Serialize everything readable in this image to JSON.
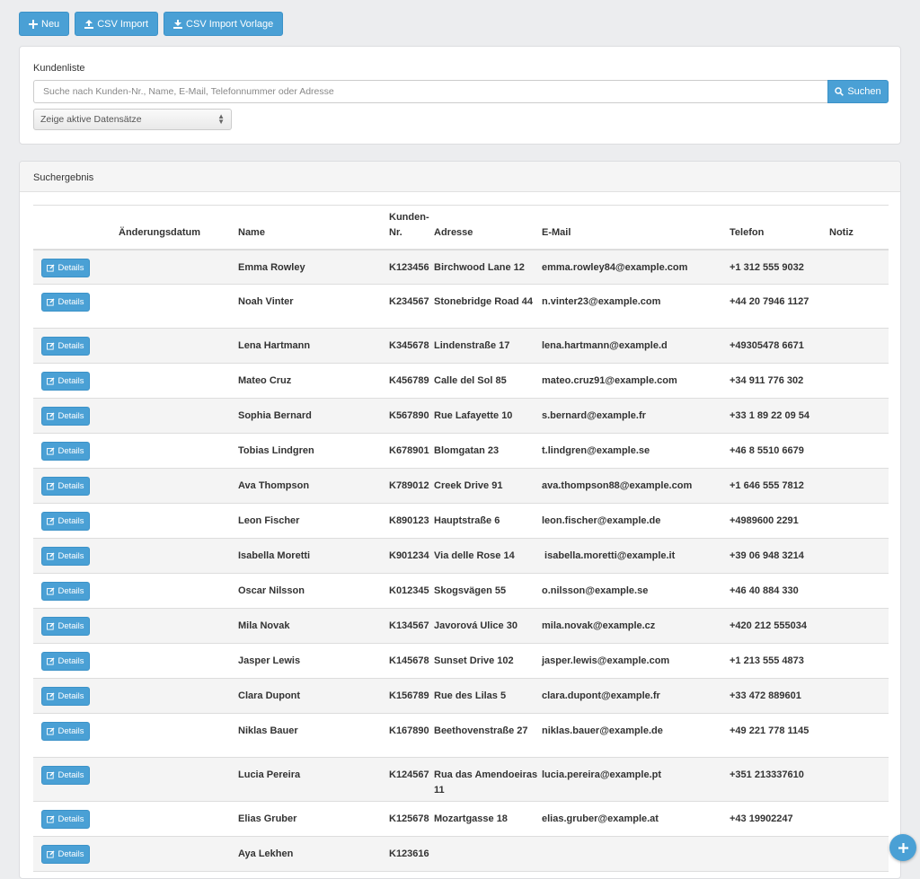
{
  "toolbar": {
    "new_label": "Neu",
    "csv_import_label": "CSV Import",
    "csv_template_label": "CSV Import Vorlage"
  },
  "search": {
    "title": "Kundenliste",
    "placeholder": "Suche nach Kunden-Nr., Name, E-Mail, Telefonnummer oder Adresse",
    "button_label": "Suchen",
    "filter_selected": "Zeige aktive Datensätze"
  },
  "results": {
    "title": "Suchergebnis",
    "columns": {
      "changed": "Änderungsdatum",
      "name": "Name",
      "customer_no": "Kunden-Nr.",
      "address": "Adresse",
      "email": "E-Mail",
      "phone": "Telefon",
      "note": "Notiz"
    },
    "details_label": "Details",
    "rows": [
      {
        "changed": "",
        "name": "Emma Rowley",
        "customer_no": "K123456",
        "address": "Birchwood Lane 12",
        "email": "emma.rowley84@example.com",
        "phone": "+1 312 555 9032",
        "note": ""
      },
      {
        "changed": "",
        "name": "Noah Vinter",
        "customer_no": "K234567",
        "address": "Stonebridge Road 44",
        "email": "n.vinter23@example.com",
        "phone": "+44 20 7946 1127",
        "note": ""
      },
      {
        "changed": "",
        "name": "Lena Hartmann",
        "customer_no": "K345678",
        "address": "Lindenstraße 17",
        "email": "lena.hartmann@example.d",
        "phone": "+49305478 6671",
        "note": ""
      },
      {
        "changed": "",
        "name": "Mateo Cruz",
        "customer_no": "K456789",
        "address": "Calle del Sol 85",
        "email": "mateo.cruz91@example.com",
        "phone": "+34 911 776 302",
        "note": ""
      },
      {
        "changed": "",
        "name": "Sophia Bernard",
        "customer_no": "K567890",
        "address": "Rue Lafayette 10",
        "email": "s.bernard@example.fr",
        "phone": "+33 1 89 22 09 54",
        "note": ""
      },
      {
        "changed": "",
        "name": "Tobias Lindgren",
        "customer_no": "K678901",
        "address": "Blomgatan 23",
        "email": "t.lindgren@example.se",
        "phone": "+46 8 5510 6679",
        "note": ""
      },
      {
        "changed": "",
        "name": "Ava Thompson",
        "customer_no": "K789012",
        "address": "Creek Drive 91",
        "email": "ava.thompson88@example.com",
        "phone": "+1 646 555 7812",
        "note": ""
      },
      {
        "changed": "",
        "name": "Leon Fischer",
        "customer_no": "K890123",
        "address": "Hauptstraße 6",
        "email": "leon.fischer@example.de",
        "phone": "+4989600 2291",
        "note": ""
      },
      {
        "changed": "",
        "name": "Isabella Moretti",
        "customer_no": "K901234",
        "address": "Via delle Rose 14",
        "email": " isabella.moretti@example.it",
        "phone": "+39 06 948 3214",
        "note": ""
      },
      {
        "changed": "",
        "name": "Oscar Nilsson",
        "customer_no": "K012345",
        "address": "Skogsvägen 55",
        "email": "o.nilsson@example.se",
        "phone": "+46 40 884 330",
        "note": ""
      },
      {
        "changed": "",
        "name": "Mila Novak",
        "customer_no": "K134567",
        "address": "Javorová Ulice 30",
        "email": "mila.novak@example.cz",
        "phone": "+420 212 555034",
        "note": ""
      },
      {
        "changed": "",
        "name": "Jasper Lewis",
        "customer_no": "K145678",
        "address": "Sunset Drive 102",
        "email": "jasper.lewis@example.com",
        "phone": "+1 213 555 4873",
        "note": ""
      },
      {
        "changed": "",
        "name": "Clara Dupont",
        "customer_no": "K156789",
        "address": "Rue des Lilas 5",
        "email": "clara.dupont@example.fr",
        "phone": "+33 472 889601",
        "note": ""
      },
      {
        "changed": "",
        "name": "Niklas Bauer",
        "customer_no": "K167890",
        "address": "Beethovenstraße 27",
        "email": "niklas.bauer@example.de",
        "phone": "+49 221 778 1145",
        "note": ""
      },
      {
        "changed": "",
        "name": "Lucia Pereira",
        "customer_no": "K124567",
        "address": "Rua das Amendoeiras 11",
        "email": "lucia.pereira@example.pt",
        "phone": "+351 213337610",
        "note": ""
      },
      {
        "changed": "",
        "name": "Elias Gruber",
        "customer_no": "K125678",
        "address": "Mozartgasse 18",
        "email": "elias.gruber@example.at",
        "phone": "+43 19902247",
        "note": ""
      },
      {
        "changed": "",
        "name": "Aya Lekhen",
        "customer_no": "K123616",
        "address": "",
        "email": "",
        "phone": "",
        "note": ""
      }
    ]
  },
  "icons": {
    "new": "plus-icon",
    "upload": "upload-icon",
    "download": "download-icon",
    "search": "search-icon",
    "details": "edit-icon",
    "fab": "plus-icon"
  },
  "colors": {
    "accent": "#4aa0d5",
    "background": "#ecedef",
    "row_stripe": "#f4f4f4"
  }
}
